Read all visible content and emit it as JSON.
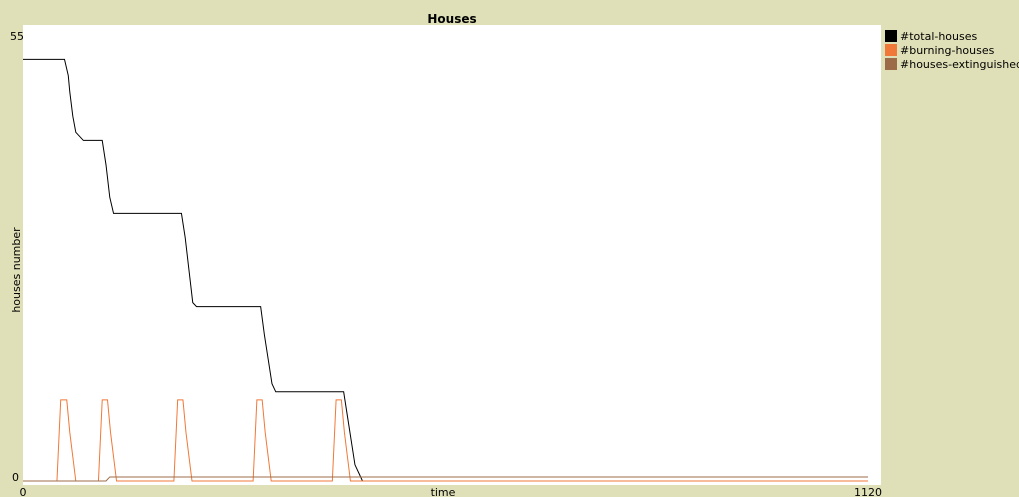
{
  "chart_data": {
    "type": "line",
    "title": "Houses",
    "xlabel": "time",
    "ylabel": "houses number",
    "xlim": [
      0,
      1120
    ],
    "ylim": [
      0,
      55
    ],
    "x_tick_labels": [
      "0",
      "1120"
    ],
    "y_tick_labels": [
      "0",
      "55"
    ],
    "grid": false,
    "legend_position": "right",
    "series": [
      {
        "name": "#total-houses",
        "color": "#000000",
        "points": [
          [
            0,
            52
          ],
          [
            55,
            52
          ],
          [
            60,
            50
          ],
          [
            62,
            48
          ],
          [
            66,
            45
          ],
          [
            70,
            43
          ],
          [
            80,
            42
          ],
          [
            105,
            42
          ],
          [
            110,
            39
          ],
          [
            115,
            35
          ],
          [
            120,
            33
          ],
          [
            140,
            33
          ],
          [
            210,
            33
          ],
          [
            215,
            30
          ],
          [
            220,
            26
          ],
          [
            225,
            22
          ],
          [
            230,
            21.5
          ],
          [
            280,
            21.5
          ],
          [
            315,
            21.5
          ],
          [
            320,
            18
          ],
          [
            325,
            15
          ],
          [
            330,
            12
          ],
          [
            335,
            11
          ],
          [
            370,
            11
          ],
          [
            425,
            11
          ],
          [
            430,
            8
          ],
          [
            435,
            5
          ],
          [
            440,
            2
          ],
          [
            445,
            1
          ],
          [
            450,
            0
          ],
          [
            1120,
            0
          ]
        ]
      },
      {
        "name": "#burning-houses",
        "color": "#f07838",
        "points": [
          [
            0,
            0
          ],
          [
            45,
            0
          ],
          [
            50,
            10
          ],
          [
            58,
            10
          ],
          [
            62,
            6
          ],
          [
            66,
            3
          ],
          [
            70,
            0
          ],
          [
            100,
            0
          ],
          [
            105,
            10
          ],
          [
            112,
            10
          ],
          [
            116,
            6
          ],
          [
            120,
            3
          ],
          [
            124,
            0
          ],
          [
            200,
            0
          ],
          [
            205,
            10
          ],
          [
            212,
            10
          ],
          [
            216,
            6
          ],
          [
            220,
            3
          ],
          [
            224,
            0
          ],
          [
            305,
            0
          ],
          [
            310,
            10
          ],
          [
            317,
            10
          ],
          [
            321,
            6
          ],
          [
            325,
            3
          ],
          [
            329,
            0
          ],
          [
            410,
            0
          ],
          [
            415,
            10
          ],
          [
            422,
            10
          ],
          [
            426,
            6
          ],
          [
            430,
            3
          ],
          [
            434,
            0
          ],
          [
            1120,
            0
          ]
        ]
      },
      {
        "name": "#houses-extinguished",
        "color": "#9c6b48",
        "points": [
          [
            0,
            0
          ],
          [
            110,
            0
          ],
          [
            115,
            0.5
          ],
          [
            1120,
            0.5
          ]
        ]
      }
    ]
  }
}
